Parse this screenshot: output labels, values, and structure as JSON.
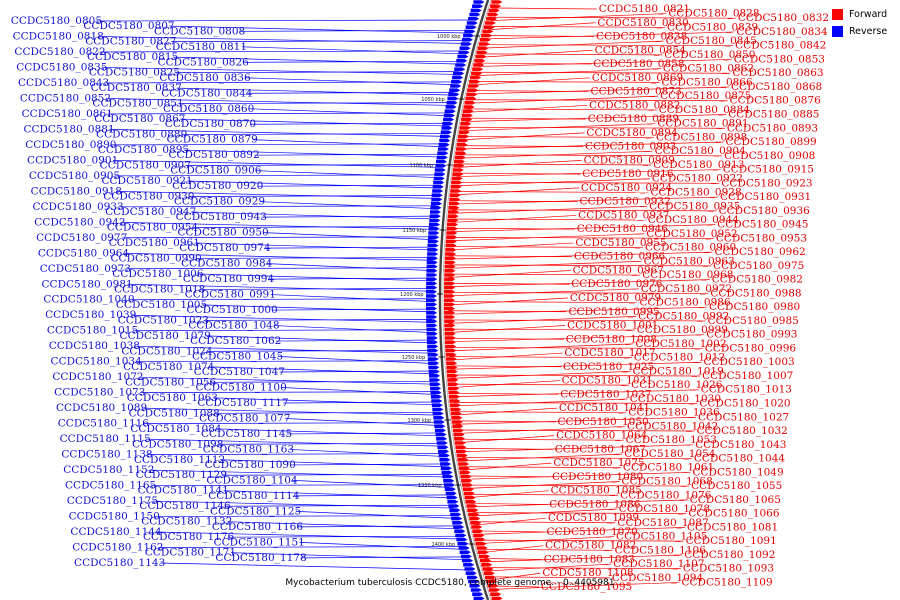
{
  "legend": {
    "forward": {
      "label": "Forward",
      "color": "#ff0000"
    },
    "reverse": {
      "label": "Reverse",
      "color": "#0000ff"
    }
  },
  "caption": "Mycobacterium tuberculosis CCDC5180, complete genome. - 0..4405981",
  "ticks": [
    "1000 kbp",
    "1050 kbp",
    "1100 kbp",
    "1150 kbp",
    "1200 kbp",
    "1250 kbp",
    "1300 kbp",
    "1350 kbp",
    "1400 kbp"
  ],
  "reverse_genes": [
    "CCDC5180_0805",
    "CCDC5180_0807",
    "CCDC5180_0808",
    "CCDC5180_0818",
    "CCDC5180_0827",
    "CCDC5180_0811",
    "CCDC5180_0822",
    "CCDC5180_0815",
    "CCDC5180_0826",
    "CCDC5180_0835",
    "CCDC5180_0825",
    "CCDC5180_0836",
    "CCDC5180_0843",
    "CCDC5180_0837",
    "CCDC5180_0844",
    "CCDC5180_0852",
    "CCDC5180_0851",
    "CCDC5180_0860",
    "CCDC5180_0861",
    "CCDC5180_0867",
    "CCDC5180_0870",
    "CCDC5180_0881",
    "CCDC5180_0880",
    "CCDC5180_0879",
    "CCDC5180_0890",
    "CCDC5180_0895",
    "CCDC5180_0892",
    "CCDC5180_0901",
    "CCDC5180_0907",
    "CCDC5180_0906",
    "CCDC5180_0905",
    "CCDC5180_0921",
    "CCDC5180_0920",
    "CCDC5180_0918",
    "CCDC5180_0930",
    "CCDC5180_0929",
    "CCDC5180_0933",
    "CCDC5180_0947",
    "CCDC5180_0943",
    "CCDC5180_0942",
    "CCDC5180_0954",
    "CCDC5180_0950",
    "CCDC5180_0977",
    "CCDC5180_0961",
    "CCDC5180_0974",
    "CCDC5180_0964",
    "CCDC5180_0990",
    "CCDC5180_0984",
    "CCDC5180_0973",
    "CCDC5180_1006",
    "CCDC5180_0994",
    "CCDC5180_0981",
    "CCDC5180_1018",
    "CCDC5180_0991",
    "CCDC5180_1040",
    "CCDC5180_1005",
    "CCDC5180_1000",
    "CCDC5180_1039",
    "CCDC5180_1023",
    "CCDC5180_1048",
    "CCDC5180_1015",
    "CCDC5180_1079",
    "CCDC5180_1062",
    "CCDC5180_1038",
    "CCDC5180_1024",
    "CCDC5180_1045",
    "CCDC5180_1034",
    "CCDC5180_1074",
    "CCDC5180_1047",
    "CCDC5180_1072",
    "CCDC5180_1056",
    "CCDC5180_1100",
    "CCDC5180_1073",
    "CCDC5180_1063",
    "CCDC5180_1117",
    "CCDC5180_1089",
    "CCDC5180_1088",
    "CCDC5180_1077",
    "CCDC5180_1116",
    "CCDC5180_1084",
    "CCDC5180_1145",
    "CCDC5180_1115",
    "CCDC5180_1098",
    "CCDC5180_1163",
    "CCDC5180_1138",
    "CCDC5180_1112",
    "CCDC5180_1090",
    "CCDC5180_1152",
    "CCDC5180_1129",
    "CCDC5180_1104",
    "CCDC5180_1165",
    "CCDC5180_1141",
    "CCDC5180_1114",
    "CCDC5180_1175",
    "CCDC5180_1146",
    "CCDC5180_1125",
    "CCDC5180_1150",
    "CCDC5180_1132",
    "CCDC5180_1166",
    "CCDC5180_1144",
    "CCDC5180_1176",
    "CCDC5180_1151",
    "CCDC5180_1162",
    "CCDC5180_1171",
    "CCDC5180_1178",
    "CCDC5180_1143"
  ],
  "forward_genes": [
    "CCDC5180_0821",
    "CCDC5180_0828",
    "CCDC5180_0832",
    "CCDC5180_0830",
    "CCDC5180_0839",
    "CCDC5180_0834",
    "CCDC5180_0838",
    "CCDC5180_0845",
    "CCDC5180_0842",
    "CCDC5180_0854",
    "CCDC5180_0850",
    "CCDC5180_0853",
    "CCDC5180_0858",
    "CCDC5180_0862",
    "CCDC5180_0863",
    "CCDC5180_0869",
    "CCDC5180_0866",
    "CCDC5180_0868",
    "CCDC5180_0873",
    "CCDC5180_0875",
    "CCDC5180_0876",
    "CCDC5180_0882",
    "CCDC5180_0884",
    "CCDC5180_0885",
    "CCDC5180_0889",
    "CCDC5180_0891",
    "CCDC5180_0893",
    "CCDC5180_0894",
    "CCDC5180_0898",
    "CCDC5180_0899",
    "CCDC5180_0903",
    "CCDC5180_0904",
    "CCDC5180_0908",
    "CCDC5180_0909",
    "CCDC5180_0913",
    "CCDC5180_0915",
    "CCDC5180_0916",
    "CCDC5180_0922",
    "CCDC5180_0923",
    "CCDC5180_0924",
    "CCDC5180_0928",
    "CCDC5180_0931",
    "CCDC5180_0932",
    "CCDC5180_0935",
    "CCDC5180_0936",
    "CCDC5180_0937",
    "CCDC5180_0944",
    "CCDC5180_0945",
    "CCDC5180_0946",
    "CCDC5180_0952",
    "CCDC5180_0953",
    "CCDC5180_0955",
    "CCDC5180_0960",
    "CCDC5180_0962",
    "CCDC5180_0966",
    "CCDC5180_0963",
    "CCDC5180_0975",
    "CCDC5180_0967",
    "CCDC5180_0968",
    "CCDC5180_0982",
    "CCDC5180_0976",
    "CCDC5180_0972",
    "CCDC5180_0988",
    "CCDC5180_0979",
    "CCDC5180_0986",
    "CCDC5180_0980",
    "CCDC5180_0995",
    "CCDC5180_0992",
    "CCDC5180_0985",
    "CCDC5180_1001",
    "CCDC5180_0999",
    "CCDC5180_0993",
    "CCDC5180_1008",
    "CCDC5180_1002",
    "CCDC5180_0996",
    "CCDC5180_1017",
    "CCDC5180_1012",
    "CCDC5180_1003",
    "CCDC5180_1025",
    "CCDC5180_1019",
    "CCDC5180_1007",
    "CCDC5180_1031",
    "CCDC5180_1026",
    "CCDC5180_1013",
    "CCDC5180_1037",
    "CCDC5180_1030",
    "CCDC5180_1020",
    "CCDC5180_1041",
    "CCDC5180_1036",
    "CCDC5180_1027",
    "CCDC5180_1050",
    "CCDC5180_1042",
    "CCDC5180_1032",
    "CCDC5180_1064",
    "CCDC5180_1053",
    "CCDC5180_1043",
    "CCDC5180_1067",
    "CCDC5180_1054",
    "CCDC5180_1044",
    "CCDC5180_1075",
    "CCDC5180_1061",
    "CCDC5180_1049",
    "CCDC5180_1080",
    "CCDC5180_1068",
    "CCDC5180_1055",
    "CCDC5180_1085",
    "CCDC5180_1076",
    "CCDC5180_1065",
    "CCDC5180_1086",
    "CCDC5180_1078",
    "CCDC5180_1066",
    "CCDC5180_1099",
    "CCDC5180_1087",
    "CCDC5180_1081",
    "CCDC5180_1070",
    "CCDC5180_1105",
    "CCDC5180_1091",
    "CCDC5180_1082",
    "CCDC5180_1106",
    "CCDC5180_1092",
    "CCDC5180_1083",
    "CCDC5180_1107",
    "CCDC5180_1093",
    "CCDC5180_1108",
    "CCDC5180_1094",
    "CCDC5180_1109",
    "CCDC5180_1095"
  ]
}
